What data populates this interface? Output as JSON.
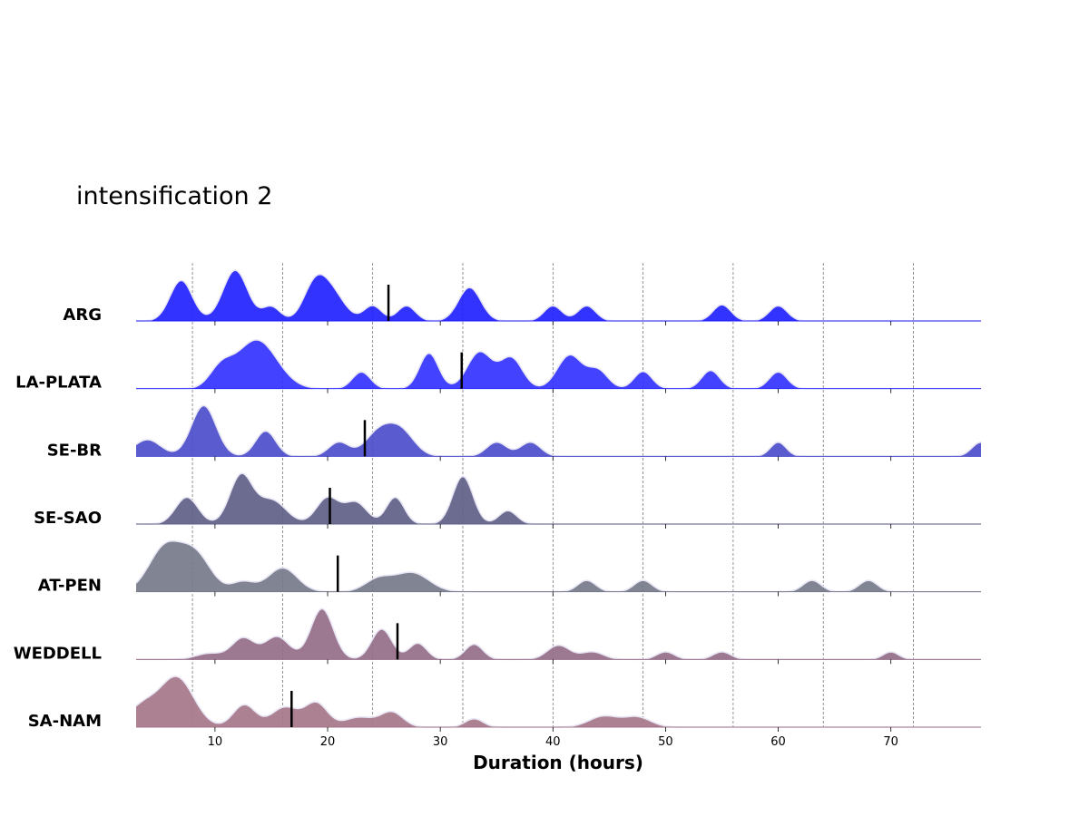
{
  "chart_data": {
    "type": "ridgeline",
    "title": "intensification 2",
    "xlabel": "Duration (hours)",
    "ylabel": "",
    "xlim": [
      3,
      78
    ],
    "xticks": [
      10,
      20,
      30,
      40,
      50,
      60,
      70
    ],
    "reference_lines_x": [
      8,
      16,
      24,
      32,
      40,
      48,
      56,
      64,
      72
    ],
    "grid": false,
    "series": [
      {
        "name": "ARG",
        "color": "#2222ff",
        "median": 25.4,
        "peaks": [
          [
            7,
            0.8,
            1.0
          ],
          [
            11.8,
            1.0,
            1.1
          ],
          [
            15,
            0.28,
            0.8
          ],
          [
            18.8,
            0.6,
            1.0
          ],
          [
            20.3,
            0.55,
            1.2
          ],
          [
            24,
            0.3,
            0.8
          ],
          [
            27,
            0.3,
            0.8
          ],
          [
            32.6,
            0.66,
            1.0
          ],
          [
            40,
            0.3,
            0.8
          ],
          [
            43,
            0.3,
            0.8
          ],
          [
            55,
            0.32,
            0.8
          ],
          [
            60,
            0.3,
            0.8
          ]
        ]
      },
      {
        "name": "LA-PLATA",
        "color": "#3333ff",
        "median": 31.9,
        "peaks": [
          [
            10.5,
            0.35,
            1.0
          ],
          [
            13.7,
            0.96,
            1.8
          ],
          [
            23,
            0.33,
            0.8
          ],
          [
            29,
            0.7,
            0.85
          ],
          [
            33.5,
            0.72,
            1.1
          ],
          [
            36.3,
            0.6,
            1.0
          ],
          [
            41.5,
            0.66,
            1.1
          ],
          [
            44,
            0.35,
            0.9
          ],
          [
            48,
            0.34,
            0.8
          ],
          [
            54,
            0.36,
            0.8
          ],
          [
            60,
            0.33,
            0.8
          ]
        ]
      },
      {
        "name": "SE-BR",
        "color": "#4d4dcc",
        "median": 23.3,
        "peaks": [
          [
            4,
            0.33,
            1.2
          ],
          [
            9,
            1.0,
            1.1
          ],
          [
            14.5,
            0.5,
            0.9
          ],
          [
            21,
            0.28,
            0.9
          ],
          [
            24.5,
            0.45,
            1.2
          ],
          [
            26.5,
            0.48,
            1.2
          ],
          [
            35,
            0.28,
            0.9
          ],
          [
            38,
            0.28,
            0.9
          ],
          [
            60,
            0.28,
            0.7
          ],
          [
            78,
            0.28,
            0.8
          ]
        ]
      },
      {
        "name": "SE-SAO",
        "color": "#5f6088",
        "median": 20.2,
        "peaks": [
          [
            7.5,
            0.56,
            1.0
          ],
          [
            12.3,
            1.0,
            1.0
          ],
          [
            15,
            0.5,
            1.3
          ],
          [
            20,
            0.55,
            1.0
          ],
          [
            22.5,
            0.45,
            1.0
          ],
          [
            26,
            0.56,
            0.8
          ],
          [
            32,
            1.0,
            0.9
          ],
          [
            36,
            0.28,
            0.8
          ]
        ]
      },
      {
        "name": "AT-PEN",
        "color": "#767a8a",
        "median": 20.9,
        "peaks": [
          [
            5.5,
            0.85,
            1.4
          ],
          [
            8.2,
            0.75,
            1.4
          ],
          [
            12.5,
            0.2,
            1.0
          ],
          [
            16,
            0.48,
            1.3
          ],
          [
            24.5,
            0.25,
            1.2
          ],
          [
            27.5,
            0.38,
            1.5
          ],
          [
            43,
            0.23,
            0.8
          ],
          [
            48,
            0.23,
            0.8
          ],
          [
            63,
            0.23,
            0.8
          ],
          [
            68,
            0.23,
            0.8
          ]
        ]
      },
      {
        "name": "WEDDELL",
        "color": "#956e88",
        "median": 26.2,
        "peaks": [
          [
            9.5,
            0.12,
            1.2
          ],
          [
            12.5,
            0.42,
            1.0
          ],
          [
            15.5,
            0.45,
            1.1
          ],
          [
            19.5,
            1.0,
            1.0
          ],
          [
            24.8,
            0.6,
            0.9
          ],
          [
            28,
            0.32,
            0.8
          ],
          [
            33,
            0.3,
            0.8
          ],
          [
            40.5,
            0.28,
            1.0
          ],
          [
            43.5,
            0.15,
            1.0
          ],
          [
            50,
            0.15,
            0.8
          ],
          [
            55,
            0.15,
            0.8
          ],
          [
            70,
            0.15,
            0.7
          ]
        ]
      },
      {
        "name": "SA-NAM",
        "color": "#a5778a",
        "median": 16.8,
        "peaks": [
          [
            3.5,
            0.4,
            1.3
          ],
          [
            6.6,
            1.0,
            1.5
          ],
          [
            12.6,
            0.45,
            1.0
          ],
          [
            16.2,
            0.4,
            1.2
          ],
          [
            19,
            0.48,
            1.0
          ],
          [
            22.8,
            0.2,
            1.3
          ],
          [
            25.7,
            0.3,
            1.0
          ],
          [
            33,
            0.17,
            0.8
          ],
          [
            44.5,
            0.22,
            1.3
          ],
          [
            47.5,
            0.2,
            1.2
          ]
        ]
      }
    ]
  }
}
